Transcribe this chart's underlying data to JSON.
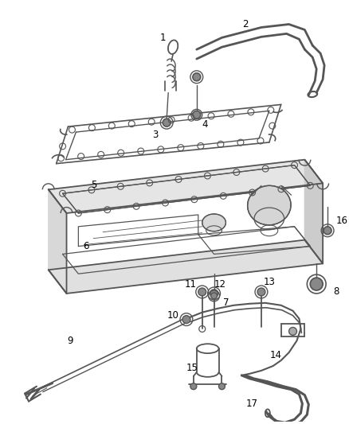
{
  "background_color": "#ffffff",
  "line_color": "#555555",
  "label_color": "#000000",
  "label_fontsize": 8.5,
  "fig_width": 4.38,
  "fig_height": 5.33,
  "dpi": 100
}
